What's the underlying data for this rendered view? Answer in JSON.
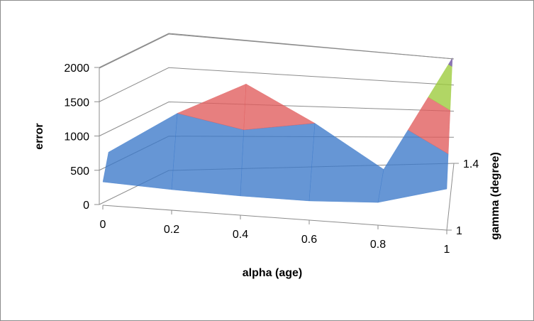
{
  "chart_data": {
    "type": "surface",
    "xlabel": "alpha (age)",
    "ylabel": "error",
    "zlabel": "gamma (degree)",
    "x_ticks": [
      "0",
      "0.2",
      "0.4",
      "0.6",
      "0.8",
      "1"
    ],
    "y_ticks": [
      "0",
      "500",
      "1000",
      "1500",
      "2000"
    ],
    "z_ticks": [
      "1",
      "1.4"
    ],
    "ylim": [
      0,
      2000
    ],
    "grid": true,
    "band_colors": [
      "#3b78c9",
      "#e05b5b",
      "#9bcb3a",
      "#6a4e9e"
    ],
    "x": [
      0,
      0.2,
      0.4,
      0.6,
      0.8,
      1
    ],
    "series": [
      {
        "name": "1",
        "values": [
          340,
          300,
          280,
          280,
          330,
          600
        ]
      },
      {
        "name": "1.4",
        "values": [
          360,
          1000,
          1500,
          1000,
          400,
          2100
        ]
      }
    ]
  }
}
